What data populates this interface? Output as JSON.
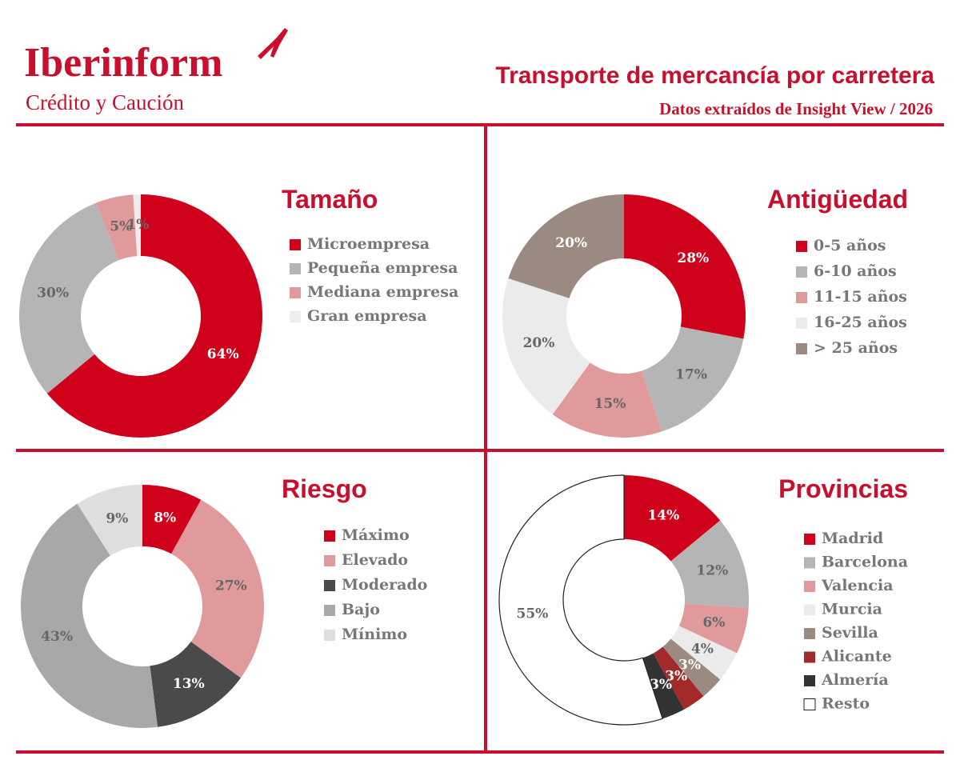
{
  "header": {
    "brand": "Iberinform",
    "brand_sub": "Crédito y Caución",
    "title": "Transporte de mercancía por carretera",
    "subtitle": "Datos extraídos de Insight View / 2026"
  },
  "chart_data": [
    {
      "type": "pie",
      "title": "Tamaño",
      "categories": [
        "Microempresa",
        "Pequeña empresa",
        "Mediana empresa",
        "Gran empresa"
      ],
      "values": [
        64,
        30,
        5,
        1
      ],
      "value_labels": [
        "64%",
        "30%",
        "5%",
        "1%"
      ],
      "colors": [
        "#d0021b",
        "#b5b5b5",
        "#e09a9c",
        "#ededed"
      ]
    },
    {
      "type": "pie",
      "title": "Antigüedad",
      "categories": [
        "0-5 años",
        "6-10 años",
        "11-15 años",
        "16-25 años",
        "> 25 años"
      ],
      "values": [
        28,
        17,
        15,
        20,
        20
      ],
      "value_labels": [
        "28%",
        "17%",
        "15%",
        "20%",
        "20%"
      ],
      "colors": [
        "#d0021b",
        "#b5b5b5",
        "#e09a9c",
        "#ebebeb",
        "#9b8a82"
      ]
    },
    {
      "type": "pie",
      "title": "Riesgo",
      "categories": [
        "Máximo",
        "Elevado",
        "Moderado",
        "Bajo",
        "Mínimo"
      ],
      "values": [
        8,
        27,
        13,
        43,
        9
      ],
      "value_labels": [
        "8%",
        "27%",
        "13%",
        "43%",
        "9%"
      ],
      "colors": [
        "#d0021b",
        "#e09a9c",
        "#4a4a4a",
        "#a8a8a8",
        "#dedede"
      ]
    },
    {
      "type": "pie",
      "title": "Provincias",
      "categories": [
        "Madrid",
        "Barcelona",
        "Valencia",
        "Murcia",
        "Sevilla",
        "Alicante",
        "Almería",
        "Resto"
      ],
      "values": [
        14,
        12,
        6,
        4,
        3,
        3,
        3,
        55
      ],
      "value_labels": [
        "14%",
        "12%",
        "6%",
        "4%",
        "3%",
        "3%",
        "3%",
        "55%"
      ],
      "colors": [
        "#d0021b",
        "#b5b5b5",
        "#e09a9c",
        "#ebebeb",
        "#9b8a82",
        "#a32a2a",
        "#333333",
        "#ffffff"
      ]
    }
  ]
}
